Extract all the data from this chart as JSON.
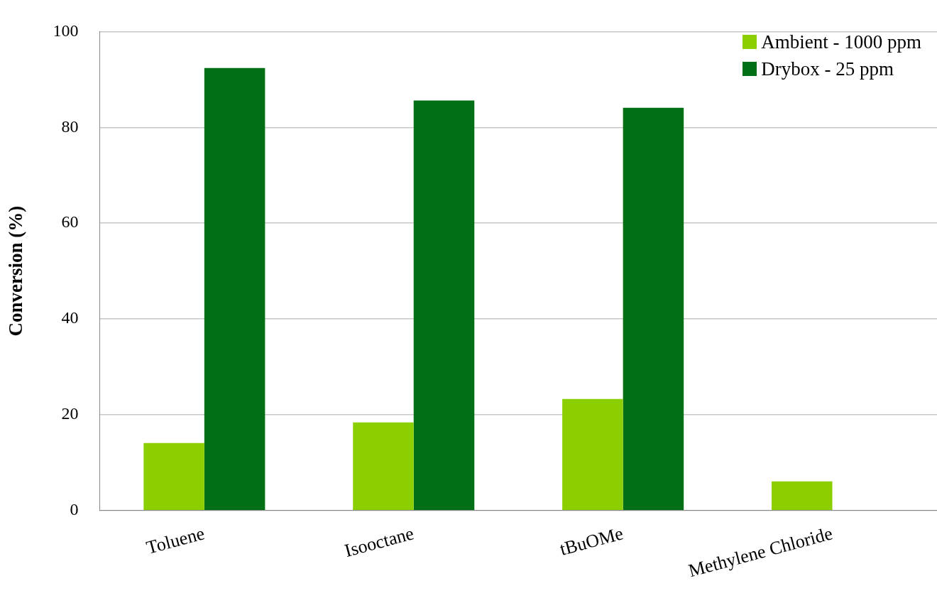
{
  "chart_data": {
    "type": "bar",
    "ylabel": "Conversion (%)",
    "categories": [
      "Toluene",
      "Isooctane",
      "tBuOMe",
      "Methylene Chloride"
    ],
    "series": [
      {
        "name": "Ambient - 1000 ppm",
        "color": "#8ccf00",
        "values": [
          14.1,
          18.4,
          23.3,
          6.1
        ]
      },
      {
        "name": "Drybox - 25 ppm",
        "color": "#006f16",
        "values": [
          92.4,
          85.6,
          84.1,
          0
        ]
      }
    ],
    "ylim": [
      0,
      100
    ],
    "yticks": [
      0,
      20,
      40,
      60,
      80,
      100
    ],
    "grid": "y",
    "legend": "top right"
  }
}
